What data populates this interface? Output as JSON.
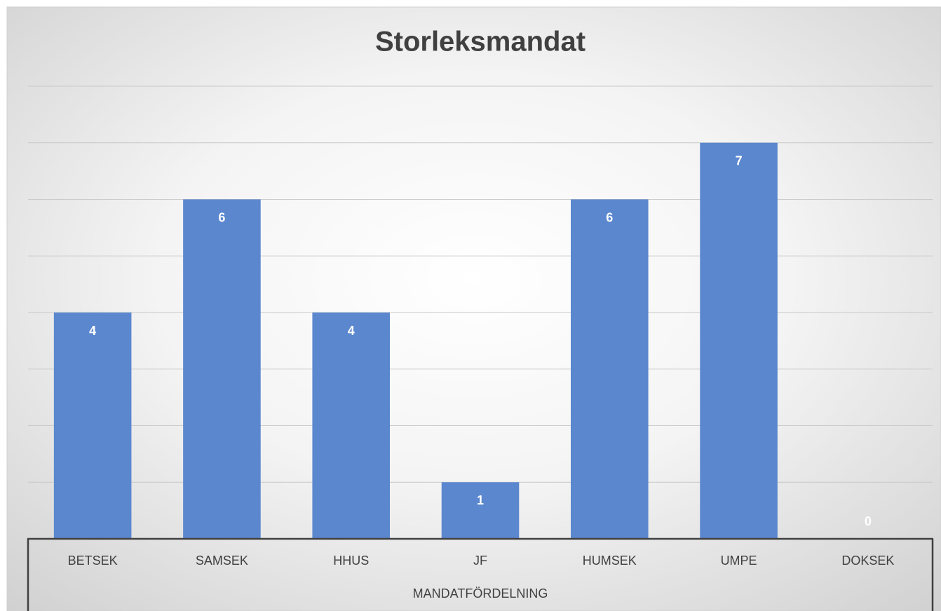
{
  "chart_data": {
    "type": "bar",
    "title": "Storleksmandat",
    "categories": [
      "BETSEK",
      "SAMSEK",
      "HHUS",
      "JF",
      "HUMSEK",
      "UMPE",
      "DOKSEK"
    ],
    "values": [
      4,
      6,
      4,
      1,
      6,
      7,
      0
    ],
    "color": "#5b87cf",
    "group_label": "MANDATFÖRDELNING",
    "ylim": [
      0,
      8
    ],
    "yticks": [
      0,
      1,
      2,
      3,
      4,
      5,
      6,
      7,
      8
    ],
    "grid": true
  }
}
